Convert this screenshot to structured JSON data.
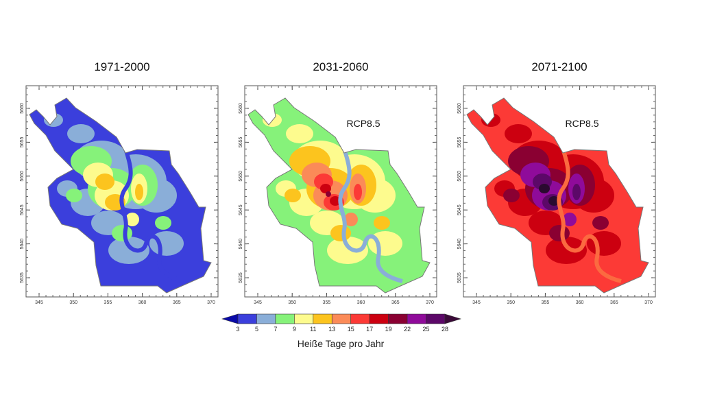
{
  "panels": [
    {
      "title": "1971-2000",
      "annotation": "",
      "base_color": "#3b3fdc",
      "layer_colors": [
        "#8aaed8",
        "#86f27a",
        "#fdfb8e",
        "#fcc41e"
      ]
    },
    {
      "title": "2031-2060",
      "annotation": "RCP8.5",
      "base_color": "#86f27a",
      "layer_colors": [
        "#fdfb8e",
        "#fcc41e",
        "#fb8b58",
        "#fc3a36",
        "#cc0010",
        "#8a0032"
      ]
    },
    {
      "title": "2071-2100",
      "annotation": "RCP8.5",
      "base_color": "#fc3a36",
      "layer_colors": [
        "#cc0010",
        "#8a0032",
        "#8f0b9a",
        "#5c0868",
        "#2a0a30"
      ]
    }
  ],
  "axes": {
    "x_ticks": [
      "345",
      "350",
      "355",
      "360",
      "365",
      "370"
    ],
    "y_ticks": [
      "5660",
      "5655",
      "5650",
      "5645",
      "5640",
      "5635"
    ]
  },
  "colorbar": {
    "title": "Heiße Tage pro Jahr",
    "tick_labels": [
      "3",
      "5",
      "7",
      "9",
      "11",
      "13",
      "15",
      "17",
      "19",
      "22",
      "25",
      "28"
    ],
    "under_color": "#0a0aa8",
    "colors": [
      "#3b3fdc",
      "#8aaed8",
      "#86f27a",
      "#fdfb8e",
      "#fcc41e",
      "#fb8b58",
      "#fc3a36",
      "#cc0010",
      "#8a0032",
      "#8f0b9a",
      "#5c0868"
    ],
    "over_color": "#3a0a38"
  }
}
